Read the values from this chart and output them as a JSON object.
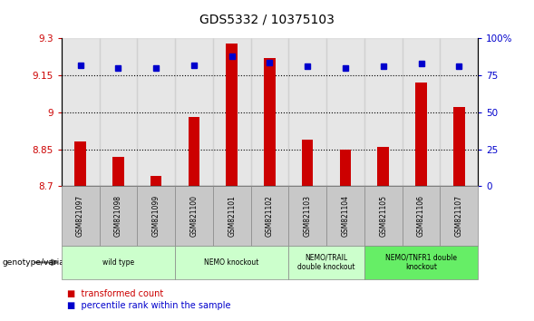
{
  "title": "GDS5332 / 10375103",
  "samples": [
    "GSM821097",
    "GSM821098",
    "GSM821099",
    "GSM821100",
    "GSM821101",
    "GSM821102",
    "GSM821103",
    "GSM821104",
    "GSM821105",
    "GSM821106",
    "GSM821107"
  ],
  "bar_values": [
    8.88,
    8.82,
    8.74,
    8.98,
    9.28,
    9.22,
    8.89,
    8.85,
    8.86,
    9.12,
    9.02
  ],
  "percentile_values": [
    82,
    80,
    80,
    82,
    88,
    84,
    81,
    80,
    81,
    83,
    81
  ],
  "ymin": 8.7,
  "ymax": 9.3,
  "yright_min": 0,
  "yright_max": 100,
  "yticks_left": [
    8.7,
    8.85,
    9.0,
    9.15,
    9.3
  ],
  "yticks_right": [
    0,
    25,
    50,
    75,
    100
  ],
  "ytick_labels_left": [
    "8.7",
    "8.85",
    "9",
    "9.15",
    "9.3"
  ],
  "ytick_labels_right": [
    "0",
    "25",
    "50",
    "75",
    "100%"
  ],
  "hlines": [
    8.85,
    9.0,
    9.15
  ],
  "bar_color": "#cc0000",
  "dot_color": "#0000cc",
  "bar_bottom": 8.7,
  "bar_width": 0.3,
  "group_colors": [
    "#ccffcc",
    "#ccffcc",
    "#ccffcc",
    "#66ee66"
  ],
  "group_labels": [
    "wild type",
    "NEMO knockout",
    "NEMO/TRAIL\ndouble knockout",
    "NEMO/TNFR1 double\nknockout"
  ],
  "group_ranges": [
    [
      0,
      3
    ],
    [
      3,
      6
    ],
    [
      6,
      8
    ],
    [
      8,
      11
    ]
  ],
  "sample_box_color": "#c8c8c8",
  "axis_left_color": "#cc0000",
  "axis_right_color": "#0000cc",
  "legend_red_label": "transformed count",
  "legend_blue_label": "percentile rank within the sample",
  "genotype_label": "genotype/variation"
}
